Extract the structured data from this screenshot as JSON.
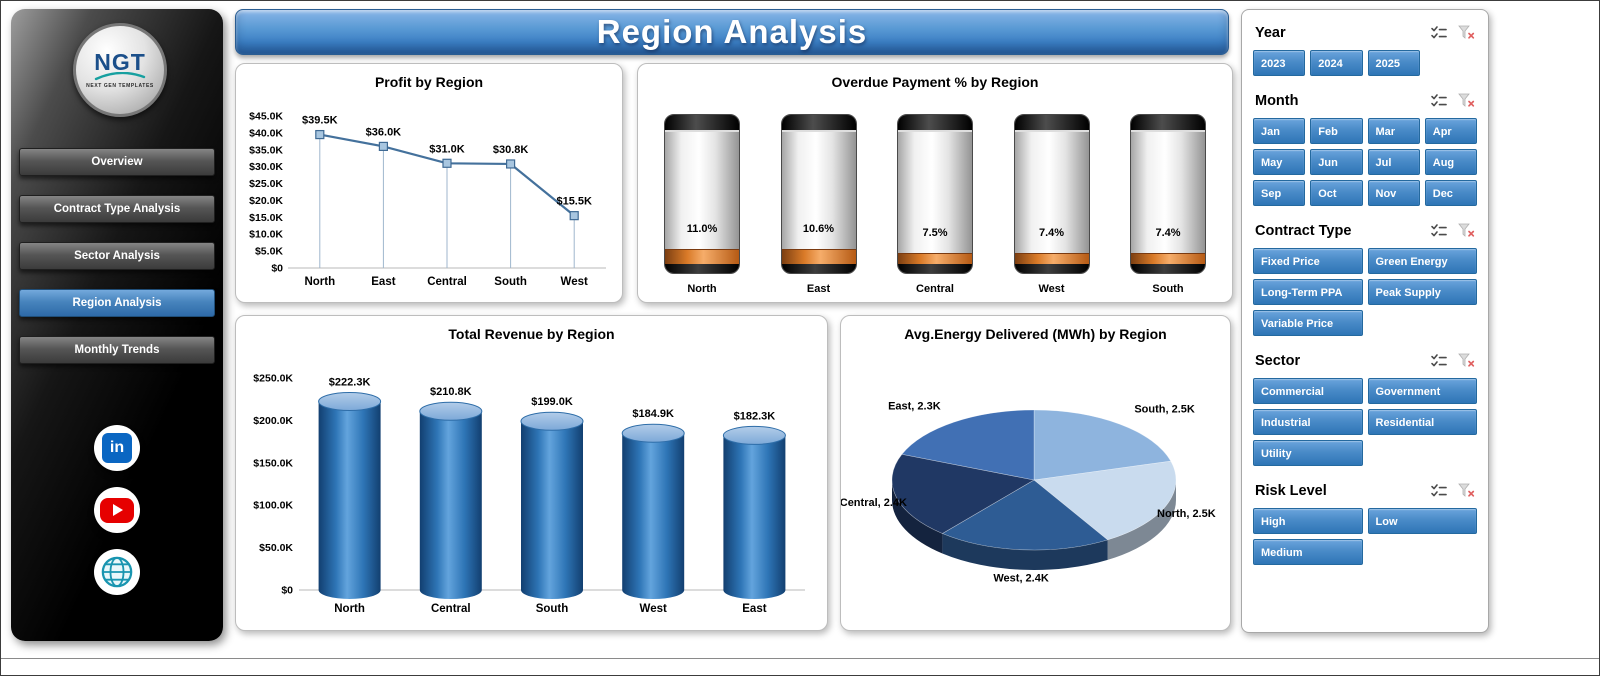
{
  "page": {
    "title": "Region Analysis"
  },
  "colors": {
    "accent": "#2e75b6",
    "banner": "#4a90d9",
    "slicer_button": "#3f83c4",
    "sidebar_active": "#3c7ab8",
    "line_series": "#44719c",
    "bar_cylinder": "#2e75b6",
    "gauge_fill": "#e0801f"
  },
  "sidebar": {
    "logo": {
      "text": "NGT",
      "subtext": "NEXT GEN TEMPLATES"
    },
    "items": [
      {
        "label": "Overview",
        "active": false
      },
      {
        "label": "Contract Type Analysis",
        "active": false
      },
      {
        "label": "Sector Analysis",
        "active": false
      },
      {
        "label": "Region Analysis",
        "active": true
      },
      {
        "label": "Monthly Trends",
        "active": false
      }
    ],
    "social": [
      {
        "name": "linkedin"
      },
      {
        "name": "youtube"
      },
      {
        "name": "website"
      }
    ]
  },
  "filters": {
    "header_icons": [
      "multi-select-icon",
      "clear-filter-icon"
    ],
    "sections": [
      {
        "title": "Year",
        "columns": 4,
        "options": [
          "2023",
          "2024",
          "2025"
        ]
      },
      {
        "title": "Month",
        "columns": 4,
        "options": [
          "Jan",
          "Feb",
          "Mar",
          "Apr",
          "May",
          "Jun",
          "Jul",
          "Aug",
          "Sep",
          "Oct",
          "Nov",
          "Dec"
        ]
      },
      {
        "title": "Contract Type",
        "columns": 2,
        "options": [
          "Fixed Price",
          "Green Energy",
          "Long-Term PPA",
          "Peak Supply",
          "Variable Price"
        ]
      },
      {
        "title": "Sector",
        "columns": 2,
        "options": [
          "Commercial",
          "Government",
          "Industrial",
          "Residential",
          "Utility"
        ]
      },
      {
        "title": "Risk Level",
        "columns": 2,
        "options": [
          "High",
          "Low",
          "Medium"
        ]
      }
    ]
  },
  "chart_data": [
    {
      "type": "line",
      "title": "Profit by Region",
      "categories": [
        "North",
        "East",
        "Central",
        "South",
        "West"
      ],
      "values": [
        39.5,
        36.0,
        31.0,
        30.8,
        15.5
      ],
      "labels": [
        "$39.5K",
        "$36.0K",
        "$31.0K",
        "$30.8K",
        "$15.5K"
      ],
      "ylim": [
        0,
        45
      ],
      "ytick_step": 5,
      "ytick_labels": [
        "$0",
        "$5.0K",
        "$10.0K",
        "$15.0K",
        "$20.0K",
        "$25.0K",
        "$30.0K",
        "$35.0K",
        "$40.0K",
        "$45.0K"
      ],
      "grid": false,
      "legend": false
    },
    {
      "type": "gauge",
      "title": "Overdue Payment % by Region",
      "categories": [
        "North",
        "East",
        "Central",
        "West",
        "South"
      ],
      "values": [
        11.0,
        10.6,
        7.5,
        7.4,
        7.4
      ],
      "labels": [
        "11.0%",
        "10.6%",
        "7.5%",
        "7.4%",
        "7.4%"
      ],
      "ylim": [
        0,
        100
      ]
    },
    {
      "type": "bar",
      "title": "Total Revenue by Region",
      "categories": [
        "North",
        "Central",
        "South",
        "West",
        "East"
      ],
      "values": [
        222.3,
        210.8,
        199.0,
        184.9,
        182.3
      ],
      "labels": [
        "$222.3K",
        "$210.8K",
        "$199.0K",
        "$184.9K",
        "$182.3K"
      ],
      "ylim": [
        0,
        250
      ],
      "ytick_step": 50,
      "ytick_labels": [
        "$0",
        "$50.0K",
        "$100.0K",
        "$150.0K",
        "$200.0K",
        "$250.0K"
      ],
      "grid": false,
      "legend": false
    },
    {
      "type": "pie",
      "title": "Avg.Energy Delivered (MWh) by Region",
      "order_clockwise_from_top": [
        "South",
        "North",
        "West",
        "Central",
        "East"
      ],
      "slices": [
        {
          "name": "South",
          "value": 2.5,
          "label": "South, 2.5K",
          "color": "#8eb4de"
        },
        {
          "name": "North",
          "value": 2.5,
          "label": "North, 2.5K",
          "color": "#c9dbee"
        },
        {
          "name": "West",
          "value": 2.4,
          "label": "West, 2.4K",
          "color": "#2e5c94"
        },
        {
          "name": "Central",
          "value": 2.4,
          "label": "Central, 2.4K",
          "color": "#203864"
        },
        {
          "name": "East",
          "value": 2.3,
          "label": "East, 2.3K",
          "color": "#4170b4"
        }
      ]
    }
  ]
}
